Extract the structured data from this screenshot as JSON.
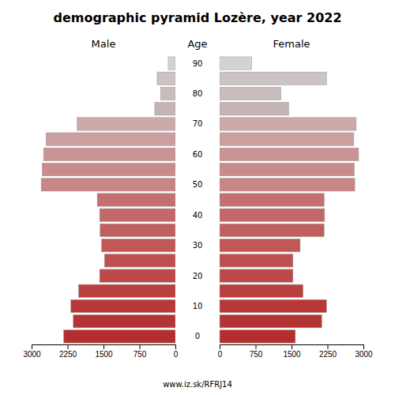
{
  "chart_data": {
    "type": "bar",
    "orientation": "horizontal",
    "title": "demographic pyramid Lozère, year 2022",
    "ylabel": "Age",
    "annotations": [
      "www.iz.sk/RFRJ14"
    ],
    "categories": [
      "0",
      null,
      "10",
      null,
      "20",
      null,
      "30",
      null,
      "40",
      null,
      "50",
      null,
      "60",
      null,
      "70",
      null,
      "80",
      null,
      "90"
    ],
    "series": [
      {
        "name": "Male",
        "values": [
          2330,
          2130,
          2180,
          2020,
          1580,
          1480,
          1540,
          1570,
          1580,
          1630,
          2800,
          2780,
          2750,
          2700,
          2050,
          430,
          310,
          380,
          150
        ]
      },
      {
        "name": "Female",
        "values": [
          1580,
          2130,
          2230,
          1740,
          1530,
          1530,
          1680,
          2180,
          2190,
          2180,
          2820,
          2810,
          2900,
          2800,
          2850,
          1440,
          1280,
          2230,
          670
        ]
      }
    ],
    "colors": [
      "#b42e2e",
      "#b63333",
      "#b83838",
      "#ba4040",
      "#bc4848",
      "#be5050",
      "#c05858",
      "#c26060",
      "#c36868",
      "#c47070",
      "#c88585",
      "#c98b8b",
      "#ca9494",
      "#cb9f9f",
      "#ccaaaa",
      "#c5b4b4",
      "#c9bcbc",
      "#ccc4c4",
      "#d5d2d2"
    ],
    "xlim": [
      0,
      3000
    ],
    "xticks": [
      0,
      750,
      1500,
      2250,
      3000
    ],
    "grid": false
  }
}
